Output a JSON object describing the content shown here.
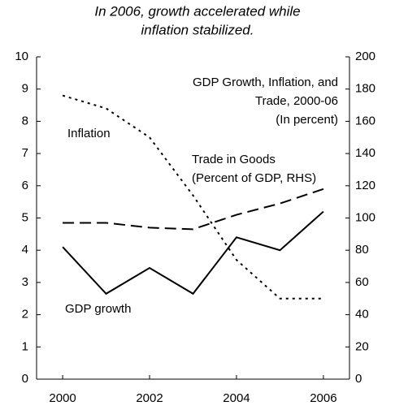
{
  "chart_data": {
    "type": "line",
    "title": [
      "In 2006, growth accelerated while",
      "inflation stabilized."
    ],
    "subtitle": [
      "GDP Growth, Inflation, and",
      "Trade, 2000-06",
      "(In percent)"
    ],
    "x": [
      2000,
      2001,
      2002,
      2003,
      2004,
      2005,
      2006
    ],
    "xlim": [
      1999.4,
      2006.6
    ],
    "xticks": [
      2000,
      2002,
      2004,
      2006
    ],
    "ylim": [
      0,
      10
    ],
    "yticks": [
      0,
      1,
      2,
      3,
      4,
      5,
      6,
      7,
      8,
      9,
      10
    ],
    "y2lim": [
      0,
      200
    ],
    "y2ticks": [
      0,
      20,
      40,
      60,
      80,
      100,
      120,
      140,
      160,
      180,
      200
    ],
    "series": [
      {
        "name": "GDP growth",
        "color": "#000000",
        "dash": "solid",
        "values": [
          4.1,
          2.65,
          3.45,
          2.65,
          4.4,
          4.0,
          5.2
        ]
      },
      {
        "name": "Inflation",
        "color": "#000000",
        "dash": "dotted",
        "values": [
          8.8,
          8.4,
          7.5,
          5.7,
          3.7,
          2.5,
          2.5
        ]
      },
      {
        "name": "Trade in Goods (Percent of GDP, RHS)",
        "color": "#000000",
        "dash": "dashed",
        "axis": "y2",
        "values": [
          97,
          97,
          94,
          93,
          102,
          109,
          118
        ]
      }
    ]
  }
}
